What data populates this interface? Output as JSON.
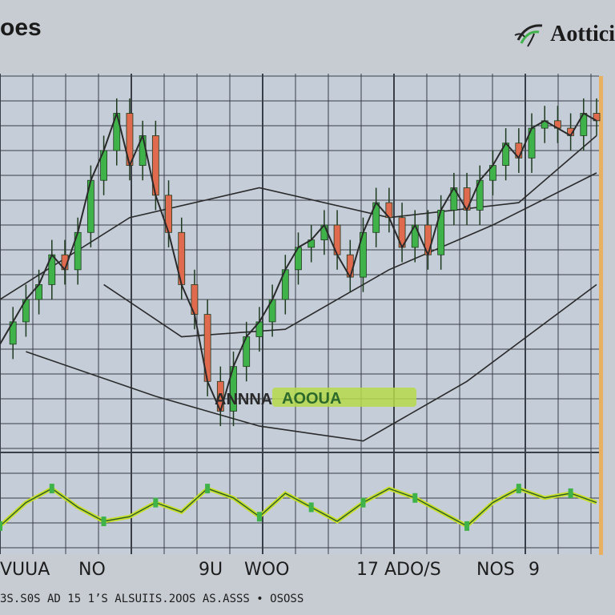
{
  "header": {
    "title_left": "oes",
    "title_right": "Aottici",
    "logo_icon": "leaf-swirl-icon"
  },
  "colors": {
    "background": "#c7ccd3",
    "plot_bg": "#c4cdd8",
    "grid": "#3a3f47",
    "up": "#3fb34a",
    "down": "#e06a4e",
    "trend": "#2a2a2a",
    "oscillator": "#c8e02a",
    "right_border": "#e8b060"
  },
  "footer": {
    "line": "3S.S0S AD 15 1’S ALSUIIS.2OOS AS.ASSS • OSOSS"
  },
  "chart_data": {
    "type": "line",
    "title": "",
    "xlabel": "",
    "ylabel": "",
    "grid": true,
    "legend": "none",
    "x_tick_labels": [
      "VUUA",
      "NO",
      "9U",
      "WOO",
      "17 ADO/S",
      "NOS",
      "9"
    ],
    "annotation": "ANNNA",
    "annotation_badge": "AOOUA",
    "price": {
      "name": "",
      "x": [
        0,
        1,
        2,
        3,
        4,
        5,
        6,
        7,
        8,
        9,
        10,
        11,
        12,
        13,
        14,
        15,
        16,
        17,
        18,
        19,
        20,
        21,
        22,
        23,
        24,
        25,
        26,
        27,
        28,
        29,
        30,
        31,
        32,
        33,
        34,
        35,
        36,
        37,
        38,
        39,
        40,
        41,
        42,
        43,
        44,
        45,
        46
      ],
      "values": [
        28,
        34,
        40,
        44,
        52,
        48,
        58,
        72,
        80,
        90,
        76,
        84,
        68,
        58,
        44,
        36,
        18,
        10,
        22,
        30,
        34,
        40,
        48,
        54,
        56,
        60,
        52,
        46,
        58,
        66,
        62,
        54,
        60,
        52,
        64,
        70,
        64,
        72,
        76,
        82,
        78,
        86,
        88,
        86,
        84,
        90,
        88
      ]
    },
    "trend_lines": [
      {
        "x": [
          0,
          10,
          20,
          30,
          40,
          46
        ],
        "values": [
          40,
          62,
          70,
          62,
          66,
          84
        ]
      },
      {
        "x": [
          8,
          14,
          22,
          30,
          38,
          46
        ],
        "values": [
          44,
          30,
          32,
          48,
          60,
          74
        ]
      },
      {
        "x": [
          2,
          12,
          20,
          28,
          36,
          46
        ],
        "values": [
          26,
          14,
          6,
          2,
          18,
          44
        ]
      }
    ],
    "oscillator": {
      "x": [
        0,
        2,
        4,
        6,
        8,
        10,
        12,
        14,
        16,
        18,
        20,
        22,
        24,
        26,
        28,
        30,
        32,
        34,
        36,
        38,
        40,
        42,
        44,
        46
      ],
      "values": [
        30,
        55,
        70,
        50,
        35,
        40,
        55,
        45,
        70,
        60,
        40,
        65,
        50,
        35,
        55,
        70,
        60,
        45,
        30,
        55,
        70,
        60,
        65,
        55
      ]
    },
    "xlim": [
      0,
      46
    ],
    "ylim": [
      0,
      100
    ],
    "osc_ylim": [
      0,
      100
    ]
  }
}
